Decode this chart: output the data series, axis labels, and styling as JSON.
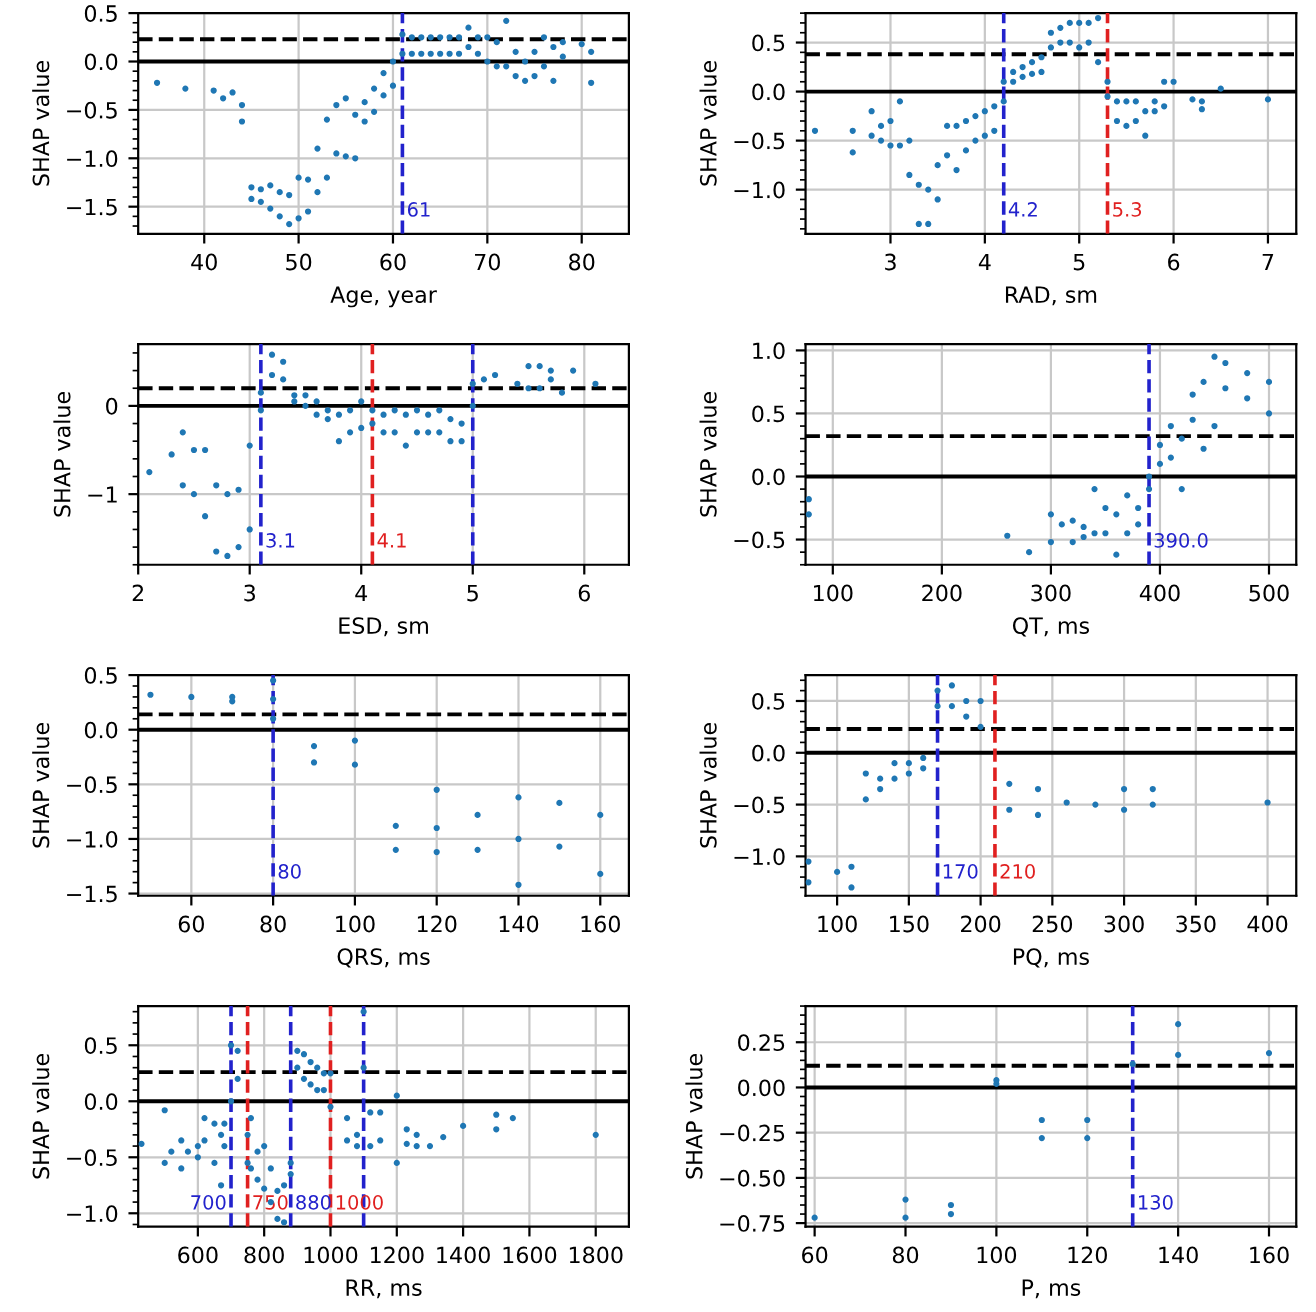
{
  "chart_data": [
    {
      "type": "scatter",
      "xlabel": "Age, year",
      "ylabel": "SHAP value",
      "color": "#1f77b4",
      "marker": "circle",
      "grid": true,
      "x": [
        35,
        38,
        41,
        42,
        43,
        44,
        44,
        45,
        45,
        46,
        46,
        47,
        47,
        48,
        48,
        49,
        49,
        50,
        50,
        51,
        51,
        52,
        52,
        53,
        53,
        54,
        54,
        55,
        55,
        56,
        56,
        57,
        57,
        58,
        58,
        59,
        59,
        60,
        60,
        61,
        61,
        62,
        62,
        63,
        63,
        64,
        64,
        65,
        65,
        66,
        66,
        67,
        67,
        68,
        68,
        69,
        69,
        70,
        70,
        71,
        71,
        72,
        72,
        73,
        73,
        74,
        74,
        75,
        75,
        76,
        76,
        77,
        77,
        78,
        78,
        80,
        81,
        81
      ],
      "values": [
        -0.22,
        -0.28,
        -0.3,
        -0.38,
        -0.32,
        -0.45,
        -0.62,
        -1.3,
        -1.42,
        -1.32,
        -1.45,
        -1.28,
        -1.52,
        -1.35,
        -1.6,
        -1.38,
        -1.68,
        -1.2,
        -1.62,
        -1.22,
        -1.55,
        -0.9,
        -1.35,
        -0.6,
        -1.2,
        -0.45,
        -0.95,
        -0.38,
        -0.98,
        -0.55,
        -1.0,
        -0.42,
        -0.62,
        -0.28,
        -0.52,
        -0.12,
        -0.35,
        -0.25,
        0.0,
        0.08,
        0.28,
        0.08,
        0.25,
        0.08,
        0.25,
        0.08,
        0.25,
        0.08,
        0.25,
        0.08,
        0.25,
        0.08,
        0.25,
        0.15,
        0.35,
        0.08,
        0.25,
        0.0,
        0.25,
        -0.05,
        0.2,
        -0.05,
        0.42,
        -0.15,
        0.1,
        -0.2,
        0.0,
        -0.15,
        0.1,
        -0.05,
        0.25,
        -0.2,
        0.15,
        0.05,
        0.2,
        0.18,
        0.1,
        -0.22
      ],
      "xlim": [
        33,
        85
      ],
      "xticks": [
        40,
        50,
        60,
        70,
        80
      ],
      "ylim": [
        -1.78,
        0.5
      ],
      "yticks": [
        {
          "value": -1.5,
          "label": "−1.5"
        },
        {
          "value": -1.0,
          "label": "−1.0"
        },
        {
          "value": -0.5,
          "label": "−0.5"
        },
        {
          "value": 0.0,
          "label": "0.0"
        },
        {
          "value": 0.5,
          "label": "0.5"
        }
      ],
      "ref_lines": [
        {
          "axis": "y",
          "value": 0,
          "color": "#000000",
          "line_style": "solid"
        },
        {
          "axis": "y",
          "value": 0.23,
          "color": "#000000",
          "line_style": "dashed"
        },
        {
          "axis": "x",
          "value": 61,
          "label": "61",
          "color": "#2222cc",
          "line_style": "dashed"
        }
      ]
    },
    {
      "type": "scatter",
      "xlabel": "RAD, sm",
      "ylabel": "SHAP value",
      "color": "#1f77b4",
      "marker": "circle",
      "grid": true,
      "x": [
        2.2,
        2.6,
        2.6,
        2.8,
        2.8,
        2.9,
        2.9,
        3.0,
        3.0,
        3.1,
        3.1,
        3.2,
        3.2,
        3.3,
        3.3,
        3.4,
        3.4,
        3.5,
        3.5,
        3.6,
        3.6,
        3.7,
        3.7,
        3.8,
        3.8,
        3.9,
        3.9,
        4.0,
        4.0,
        4.1,
        4.1,
        4.2,
        4.2,
        4.3,
        4.3,
        4.4,
        4.4,
        4.5,
        4.5,
        4.6,
        4.6,
        4.7,
        4.7,
        4.8,
        4.8,
        4.9,
        4.9,
        5.0,
        5.0,
        5.1,
        5.1,
        5.2,
        5.2,
        5.3,
        5.3,
        5.4,
        5.4,
        5.5,
        5.5,
        5.6,
        5.6,
        5.7,
        5.7,
        5.8,
        5.8,
        5.9,
        5.9,
        6.0,
        6.2,
        6.3,
        6.3,
        6.5,
        7.0
      ],
      "values": [
        -0.4,
        -0.4,
        -0.62,
        -0.2,
        -0.45,
        -0.35,
        -0.5,
        -0.3,
        -0.55,
        -0.1,
        -0.55,
        -0.5,
        -0.85,
        -0.95,
        -1.35,
        -1.0,
        -1.35,
        -0.75,
        -1.1,
        -0.35,
        -0.65,
        -0.35,
        -0.8,
        -0.3,
        -0.6,
        -0.25,
        -0.5,
        -0.2,
        -0.45,
        -0.15,
        -0.4,
        -0.1,
        0.1,
        0.1,
        0.2,
        0.15,
        0.25,
        0.18,
        0.3,
        0.2,
        0.35,
        0.45,
        0.6,
        0.5,
        0.65,
        0.5,
        0.7,
        0.45,
        0.7,
        0.5,
        0.7,
        0.3,
        0.75,
        -0.05,
        0.1,
        -0.1,
        -0.3,
        -0.1,
        -0.35,
        -0.1,
        -0.3,
        -0.2,
        -0.45,
        -0.1,
        -0.2,
        0.1,
        -0.15,
        0.1,
        -0.08,
        -0.1,
        -0.18,
        0.03,
        -0.08
      ],
      "xlim": [
        2.1,
        7.3
      ],
      "xticks": [
        3,
        4,
        5,
        6,
        7
      ],
      "ylim": [
        -1.45,
        0.8
      ],
      "yticks": [
        {
          "value": -1.0,
          "label": "−1.0"
        },
        {
          "value": -0.5,
          "label": "−0.5"
        },
        {
          "value": 0.0,
          "label": "0.0"
        },
        {
          "value": 0.5,
          "label": "0.5"
        }
      ],
      "ref_lines": [
        {
          "axis": "y",
          "value": 0,
          "color": "#000000",
          "line_style": "solid"
        },
        {
          "axis": "y",
          "value": 0.38,
          "color": "#000000",
          "line_style": "dashed"
        },
        {
          "axis": "x",
          "value": 4.2,
          "label": "4.2",
          "color": "#2222cc",
          "line_style": "dashed"
        },
        {
          "axis": "x",
          "value": 5.3,
          "label": "5.3",
          "color": "#e02020",
          "line_style": "dashed"
        }
      ]
    },
    {
      "type": "scatter",
      "xlabel": "ESD, sm",
      "ylabel": "SHAP value",
      "color": "#1f77b4",
      "marker": "circle",
      "grid": true,
      "x": [
        2.1,
        2.3,
        2.4,
        2.4,
        2.5,
        2.5,
        2.6,
        2.6,
        2.7,
        2.7,
        2.8,
        2.8,
        2.9,
        2.9,
        3.0,
        3.0,
        3.1,
        3.1,
        3.2,
        3.2,
        3.3,
        3.3,
        3.4,
        3.4,
        3.5,
        3.5,
        3.6,
        3.6,
        3.7,
        3.7,
        3.8,
        3.8,
        3.9,
        3.9,
        4.0,
        4.0,
        4.1,
        4.1,
        4.2,
        4.2,
        4.3,
        4.3,
        4.4,
        4.4,
        4.5,
        4.5,
        4.6,
        4.6,
        4.7,
        4.7,
        4.8,
        4.8,
        4.9,
        4.9,
        5.0,
        5.0,
        5.1,
        5.2,
        5.4,
        5.5,
        5.5,
        5.6,
        5.6,
        5.7,
        5.7,
        5.8,
        5.9,
        6.1
      ],
      "values": [
        -0.75,
        -0.55,
        -0.3,
        -0.9,
        -0.5,
        -1.0,
        -0.5,
        -1.25,
        -0.9,
        -1.65,
        -1.0,
        -1.7,
        -0.95,
        -1.6,
        -0.45,
        -1.4,
        -0.05,
        0.15,
        0.35,
        0.58,
        0.3,
        0.5,
        0.05,
        0.12,
        0.0,
        0.12,
        -0.1,
        0.05,
        -0.15,
        -0.05,
        -0.4,
        -0.1,
        -0.3,
        -0.05,
        -0.25,
        0.05,
        -0.2,
        -0.05,
        -0.3,
        -0.1,
        -0.3,
        -0.05,
        -0.45,
        -0.1,
        -0.3,
        -0.05,
        -0.3,
        -0.1,
        -0.3,
        -0.05,
        -0.4,
        -0.15,
        -0.4,
        -0.2,
        0.0,
        0.25,
        0.3,
        0.35,
        0.25,
        0.2,
        0.45,
        0.2,
        0.45,
        0.3,
        0.4,
        0.15,
        0.4,
        0.25
      ],
      "xlim": [
        2,
        6.4
      ],
      "xticks": [
        2,
        3,
        4,
        5,
        6
      ],
      "ylim": [
        -1.8,
        0.7
      ],
      "yticks": [
        {
          "value": -1,
          "label": "−1"
        },
        {
          "value": 0,
          "label": "0"
        }
      ],
      "ref_lines": [
        {
          "axis": "y",
          "value": 0,
          "color": "#000000",
          "line_style": "solid"
        },
        {
          "axis": "y",
          "value": 0.2,
          "color": "#000000",
          "line_style": "dashed"
        },
        {
          "axis": "x",
          "value": 3.1,
          "label": "3.1",
          "color": "#2222cc",
          "line_style": "dashed"
        },
        {
          "axis": "x",
          "value": 4.1,
          "label": "4.1",
          "color": "#e02020",
          "line_style": "dashed"
        },
        {
          "axis": "x",
          "value": 5.0,
          "color": "#2222cc",
          "line_style": "dashed"
        }
      ]
    },
    {
      "type": "scatter",
      "xlabel": "QT, ms",
      "ylabel": "SHAP value",
      "color": "#1f77b4",
      "marker": "circle",
      "grid": true,
      "x": [
        78,
        78,
        260,
        280,
        300,
        300,
        310,
        320,
        320,
        330,
        330,
        340,
        340,
        350,
        350,
        360,
        360,
        370,
        370,
        380,
        380,
        390,
        390,
        400,
        400,
        410,
        410,
        420,
        420,
        430,
        430,
        440,
        440,
        450,
        450,
        460,
        460,
        480,
        480,
        500,
        500
      ],
      "values": [
        -0.18,
        -0.3,
        -0.47,
        -0.6,
        -0.3,
        -0.52,
        -0.38,
        -0.35,
        -0.52,
        -0.4,
        -0.48,
        -0.1,
        -0.45,
        -0.25,
        -0.45,
        -0.3,
        -0.62,
        -0.15,
        -0.45,
        -0.25,
        -0.38,
        0.0,
        -0.1,
        0.1,
        0.25,
        0.15,
        0.4,
        -0.1,
        0.3,
        0.45,
        0.65,
        0.22,
        0.75,
        0.4,
        0.95,
        0.7,
        0.9,
        0.62,
        0.82,
        0.5,
        0.75
      ],
      "xlim": [
        75,
        525
      ],
      "xticks": [
        100,
        200,
        300,
        400,
        500
      ],
      "ylim": [
        -0.7,
        1.05
      ],
      "yticks": [
        {
          "value": -0.5,
          "label": "−0.5"
        },
        {
          "value": 0.0,
          "label": "0.0"
        },
        {
          "value": 0.5,
          "label": "0.5"
        },
        {
          "value": 1.0,
          "label": "1.0"
        }
      ],
      "ref_lines": [
        {
          "axis": "y",
          "value": 0,
          "color": "#000000",
          "line_style": "solid"
        },
        {
          "axis": "y",
          "value": 0.32,
          "color": "#000000",
          "line_style": "dashed"
        },
        {
          "axis": "x",
          "value": 390,
          "label": "390.0",
          "color": "#2222cc",
          "line_style": "dashed"
        }
      ]
    },
    {
      "type": "scatter",
      "xlabel": "QRS, ms",
      "ylabel": "SHAP value",
      "color": "#1f77b4",
      "marker": "circle",
      "grid": true,
      "x": [
        50,
        60,
        70,
        70,
        80,
        80,
        80,
        90,
        90,
        100,
        100,
        110,
        110,
        120,
        120,
        120,
        130,
        130,
        140,
        140,
        140,
        150,
        150,
        160,
        160
      ],
      "values": [
        0.32,
        0.3,
        0.26,
        0.3,
        0.1,
        0.28,
        0.45,
        -0.3,
        -0.15,
        -0.32,
        -0.1,
        -0.88,
        -1.1,
        -0.55,
        -0.9,
        -1.12,
        -0.78,
        -1.1,
        -0.62,
        -1.0,
        -1.42,
        -0.67,
        -1.07,
        -0.78,
        -1.32
      ],
      "xlim": [
        47,
        167
      ],
      "xticks": [
        60,
        80,
        100,
        120,
        140,
        160
      ],
      "ylim": [
        -1.52,
        0.5
      ],
      "yticks": [
        {
          "value": -1.5,
          "label": "−1.5"
        },
        {
          "value": -1.0,
          "label": "−1.0"
        },
        {
          "value": -0.5,
          "label": "−0.5"
        },
        {
          "value": 0.0,
          "label": "0.0"
        },
        {
          "value": 0.5,
          "label": "0.5"
        }
      ],
      "ref_lines": [
        {
          "axis": "y",
          "value": 0,
          "color": "#000000",
          "line_style": "solid"
        },
        {
          "axis": "y",
          "value": 0.14,
          "color": "#000000",
          "line_style": "dashed"
        },
        {
          "axis": "x",
          "value": 80,
          "label": "80",
          "color": "#2222cc",
          "line_style": "dashed"
        }
      ]
    },
    {
      "type": "scatter",
      "xlabel": "PQ, ms",
      "ylabel": "SHAP value",
      "color": "#1f77b4",
      "marker": "circle",
      "grid": true,
      "x": [
        80,
        80,
        100,
        110,
        110,
        120,
        120,
        130,
        130,
        140,
        140,
        150,
        150,
        160,
        160,
        170,
        170,
        180,
        180,
        190,
        190,
        200,
        200,
        220,
        220,
        240,
        240,
        260,
        280,
        300,
        300,
        320,
        320,
        400
      ],
      "values": [
        -1.05,
        -1.25,
        -1.15,
        -1.1,
        -1.3,
        -0.2,
        -0.45,
        -0.25,
        -0.35,
        -0.1,
        -0.25,
        -0.1,
        -0.2,
        -0.05,
        -0.15,
        0.45,
        0.6,
        0.45,
        0.65,
        0.35,
        0.5,
        0.25,
        0.5,
        -0.3,
        -0.55,
        -0.35,
        -0.6,
        -0.48,
        -0.5,
        -0.35,
        -0.55,
        -0.35,
        -0.5,
        -0.48
      ],
      "xlim": [
        78,
        420
      ],
      "xticks": [
        100,
        150,
        200,
        250,
        300,
        350,
        400
      ],
      "ylim": [
        -1.38,
        0.75
      ],
      "yticks": [
        {
          "value": -1.0,
          "label": "−1.0"
        },
        {
          "value": -0.5,
          "label": "−0.5"
        },
        {
          "value": 0.0,
          "label": "0.0"
        },
        {
          "value": 0.5,
          "label": "0.5"
        }
      ],
      "ref_lines": [
        {
          "axis": "y",
          "value": 0,
          "color": "#000000",
          "line_style": "solid"
        },
        {
          "axis": "y",
          "value": 0.23,
          "color": "#000000",
          "line_style": "dashed"
        },
        {
          "axis": "x",
          "value": 170,
          "label": "170",
          "color": "#2222cc",
          "line_style": "dashed"
        },
        {
          "axis": "x",
          "value": 210,
          "label": "210",
          "color": "#e02020",
          "line_style": "dashed"
        }
      ]
    },
    {
      "type": "scatter",
      "xlabel": "RR, ms",
      "ylabel": "SHAP value",
      "color": "#1f77b4",
      "marker": "circle",
      "grid": true,
      "x": [
        430,
        500,
        500,
        520,
        550,
        550,
        570,
        600,
        600,
        620,
        620,
        650,
        650,
        670,
        670,
        680,
        680,
        700,
        700,
        720,
        720,
        750,
        750,
        760,
        760,
        780,
        780,
        800,
        800,
        820,
        820,
        840,
        840,
        860,
        860,
        880,
        880,
        900,
        900,
        920,
        920,
        940,
        940,
        960,
        960,
        980,
        980,
        1000,
        1000,
        1050,
        1050,
        1080,
        1080,
        1100,
        1100,
        1120,
        1120,
        1150,
        1150,
        1200,
        1200,
        1230,
        1230,
        1260,
        1260,
        1300,
        1340,
        1400,
        1500,
        1500,
        1550,
        1800
      ],
      "values": [
        -0.38,
        -0.08,
        -0.55,
        -0.45,
        -0.35,
        -0.6,
        -0.45,
        -0.4,
        -0.5,
        -0.15,
        -0.35,
        -0.2,
        -0.55,
        -0.3,
        -0.75,
        -0.2,
        -0.4,
        0.0,
        0.5,
        0.2,
        0.45,
        -0.3,
        -0.55,
        -0.15,
        -0.6,
        -0.45,
        -0.7,
        -0.4,
        -0.78,
        -0.6,
        -0.9,
        -0.8,
        -1.05,
        -0.75,
        -1.08,
        -0.55,
        -0.65,
        0.3,
        0.45,
        0.2,
        0.42,
        0.15,
        0.35,
        0.1,
        0.3,
        0.1,
        0.25,
        -0.05,
        0.25,
        -0.15,
        -0.35,
        -0.3,
        -0.4,
        0.3,
        0.8,
        -0.1,
        -0.4,
        -0.1,
        -0.35,
        0.05,
        -0.55,
        -0.25,
        -0.38,
        -0.3,
        -0.4,
        -0.4,
        -0.32,
        -0.22,
        -0.12,
        -0.25,
        -0.15,
        -0.3
      ],
      "xlim": [
        420,
        1900
      ],
      "xticks": [
        600,
        800,
        1000,
        1200,
        1400,
        1600,
        1800
      ],
      "ylim": [
        -1.12,
        0.85
      ],
      "yticks": [
        {
          "value": -1.0,
          "label": "−1.0"
        },
        {
          "value": -0.5,
          "label": "−0.5"
        },
        {
          "value": 0.0,
          "label": "0.0"
        },
        {
          "value": 0.5,
          "label": "0.5"
        }
      ],
      "ref_lines": [
        {
          "axis": "y",
          "value": 0,
          "color": "#000000",
          "line_style": "solid"
        },
        {
          "axis": "y",
          "value": 0.26,
          "color": "#000000",
          "line_style": "dashed"
        },
        {
          "axis": "x",
          "value": 700,
          "label": "700",
          "color": "#2222cc",
          "line_style": "dashed"
        },
        {
          "axis": "x",
          "value": 750,
          "label": "750",
          "color": "#e02020",
          "line_style": "dashed"
        },
        {
          "axis": "x",
          "value": 880,
          "label": "880",
          "color": "#2222cc",
          "line_style": "dashed"
        },
        {
          "axis": "x",
          "value": 1000,
          "label": "1000",
          "color": "#e02020",
          "line_style": "dashed"
        },
        {
          "axis": "x",
          "value": 1100,
          "color": "#2222cc",
          "line_style": "dashed"
        }
      ]
    },
    {
      "type": "scatter",
      "xlabel": "P, ms",
      "ylabel": "SHAP value",
      "color": "#1f77b4",
      "marker": "circle",
      "grid": true,
      "x": [
        60,
        80,
        80,
        90,
        90,
        100,
        100,
        110,
        110,
        120,
        120,
        130,
        140,
        140,
        160
      ],
      "values": [
        -0.72,
        -0.62,
        -0.72,
        -0.65,
        -0.7,
        0.02,
        0.04,
        -0.18,
        -0.28,
        -0.18,
        -0.28,
        0.13,
        0.18,
        0.35,
        0.19
      ],
      "xlim": [
        58,
        166
      ],
      "xticks": [
        60,
        80,
        100,
        120,
        140,
        160
      ],
      "ylim": [
        -0.77,
        0.45
      ],
      "yticks": [
        {
          "value": -0.75,
          "label": "−0.75"
        },
        {
          "value": -0.5,
          "label": "−0.50"
        },
        {
          "value": -0.25,
          "label": "−0.25"
        },
        {
          "value": 0.0,
          "label": "0.00"
        },
        {
          "value": 0.25,
          "label": "0.25"
        }
      ],
      "ref_lines": [
        {
          "axis": "y",
          "value": 0,
          "color": "#000000",
          "line_style": "solid"
        },
        {
          "axis": "y",
          "value": 0.12,
          "color": "#000000",
          "line_style": "dashed"
        },
        {
          "axis": "x",
          "value": 130,
          "label": "130",
          "color": "#2222cc",
          "line_style": "dashed"
        }
      ]
    }
  ]
}
